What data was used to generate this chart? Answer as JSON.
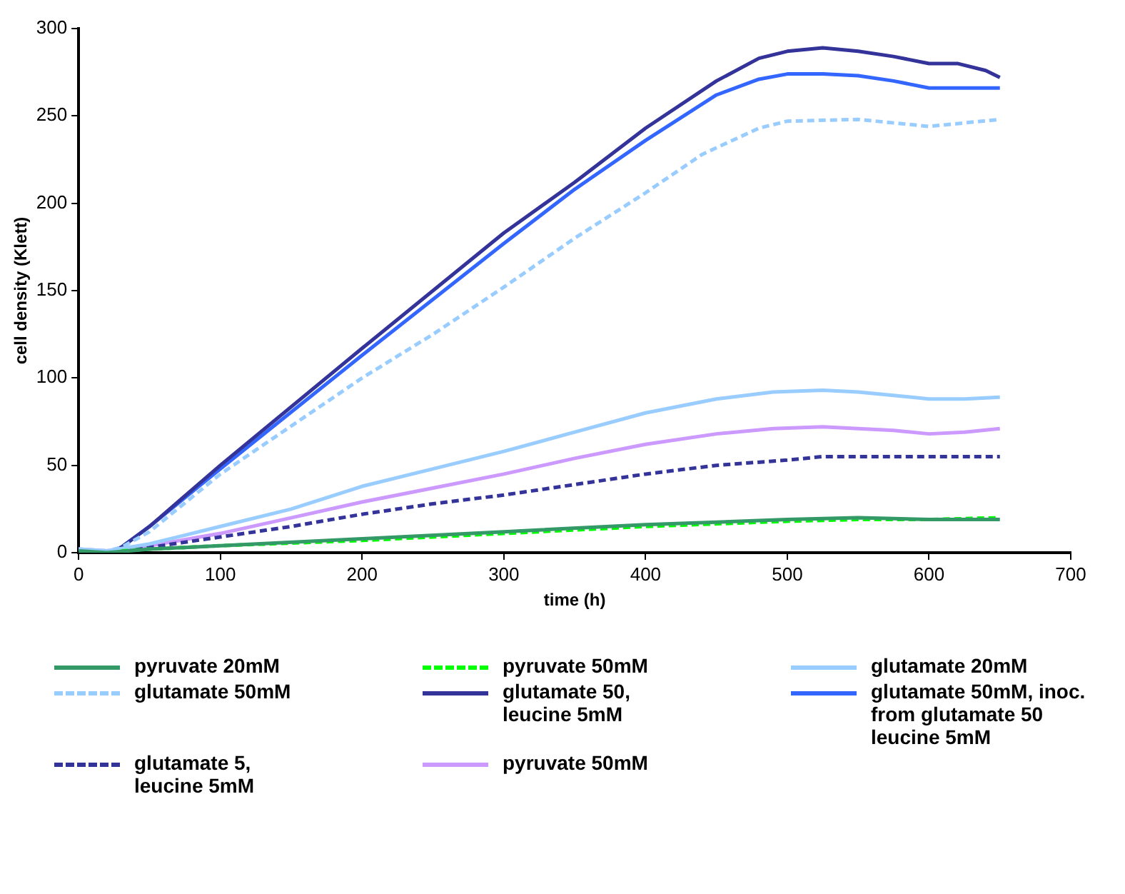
{
  "chart_data": {
    "type": "line",
    "xlabel": "time (h)",
    "ylabel": "cell density (Klett)",
    "xlim": [
      0,
      700
    ],
    "xticks": [
      0,
      100,
      200,
      300,
      400,
      500,
      600,
      700
    ],
    "ylim": [
      0,
      300
    ],
    "yticks": [
      0,
      50,
      100,
      150,
      200,
      250,
      300
    ],
    "grid": false,
    "legend": "bottom",
    "marker": "none",
    "series": [
      {
        "name": "pyruvate 20mM",
        "color": "#339966",
        "line_style": "solid",
        "x": [
          0,
          20,
          50,
          100,
          200,
          300,
          400,
          500,
          550,
          600,
          650
        ],
        "values": [
          1,
          0,
          2,
          4,
          8,
          12,
          16,
          19,
          20,
          19,
          19
        ]
      },
      {
        "name": "pyruvate 50mM",
        "color": "#00ff00",
        "line_style": "dashed",
        "x": [
          30,
          50,
          100,
          200,
          300,
          400,
          500,
          550,
          600,
          650
        ],
        "values": [
          1,
          2,
          4,
          7,
          11,
          15,
          18,
          19,
          19,
          20
        ]
      },
      {
        "name": "glutamate 20mM",
        "color": "#99ccff",
        "line_style": "solid",
        "x": [
          0,
          20,
          50,
          100,
          150,
          200,
          250,
          300,
          350,
          400,
          450,
          490,
          525,
          550,
          575,
          600,
          625,
          650
        ],
        "values": [
          2,
          1,
          5,
          15,
          25,
          38,
          48,
          58,
          69,
          80,
          88,
          92,
          93,
          92,
          90,
          88,
          88,
          89
        ]
      },
      {
        "name": "glutamate 50mM",
        "color": "#99ccff",
        "line_style": "dashed",
        "x": [
          0,
          20,
          30,
          50,
          100,
          200,
          250,
          300,
          350,
          400,
          440,
          480,
          500,
          550,
          575,
          600,
          625,
          650
        ],
        "values": [
          2,
          1,
          3,
          12,
          45,
          100,
          125,
          152,
          180,
          206,
          228,
          243,
          247,
          248,
          246,
          244,
          246,
          248
        ]
      },
      {
        "name": "glutamate 50,\nleucine 5mM",
        "color": "#333399",
        "line_style": "solid",
        "x": [
          0,
          10,
          20,
          30,
          50,
          100,
          200,
          300,
          350,
          400,
          450,
          480,
          500,
          525,
          550,
          575,
          600,
          620,
          640,
          650
        ],
        "values": [
          2,
          0,
          0,
          3,
          15,
          50,
          117,
          183,
          212,
          243,
          270,
          283,
          287,
          289,
          287,
          284,
          280,
          280,
          276,
          272
        ]
      },
      {
        "name": "glutamate 50mM, inoc.\nfrom glutamate 50\nleucine 5mM",
        "color": "#3366ff",
        "line_style": "solid",
        "x": [
          0,
          10,
          20,
          30,
          50,
          100,
          200,
          300,
          350,
          400,
          450,
          480,
          500,
          525,
          550,
          575,
          600,
          620,
          650
        ],
        "values": [
          2,
          0,
          0,
          3,
          15,
          48,
          113,
          177,
          208,
          236,
          262,
          271,
          274,
          274,
          273,
          270,
          266,
          266,
          266
        ]
      },
      {
        "name": "glutamate 5,\nleucine 5mM",
        "color": "#333399",
        "line_style": "dashed",
        "x": [
          0,
          20,
          50,
          100,
          150,
          200,
          250,
          300,
          350,
          400,
          450,
          500,
          525,
          650
        ],
        "values": [
          1,
          0,
          3,
          9,
          15,
          22,
          28,
          33,
          39,
          45,
          50,
          53,
          55,
          55
        ]
      },
      {
        "name": "pyruvate 50mM",
        "color": "#cc99ff",
        "line_style": "solid",
        "x": [
          0,
          20,
          50,
          100,
          150,
          200,
          250,
          300,
          350,
          400,
          450,
          490,
          525,
          550,
          575,
          600,
          625,
          650
        ],
        "values": [
          2,
          1,
          4,
          11,
          20,
          29,
          37,
          45,
          54,
          62,
          68,
          71,
          72,
          71,
          70,
          68,
          69,
          71
        ]
      }
    ]
  }
}
